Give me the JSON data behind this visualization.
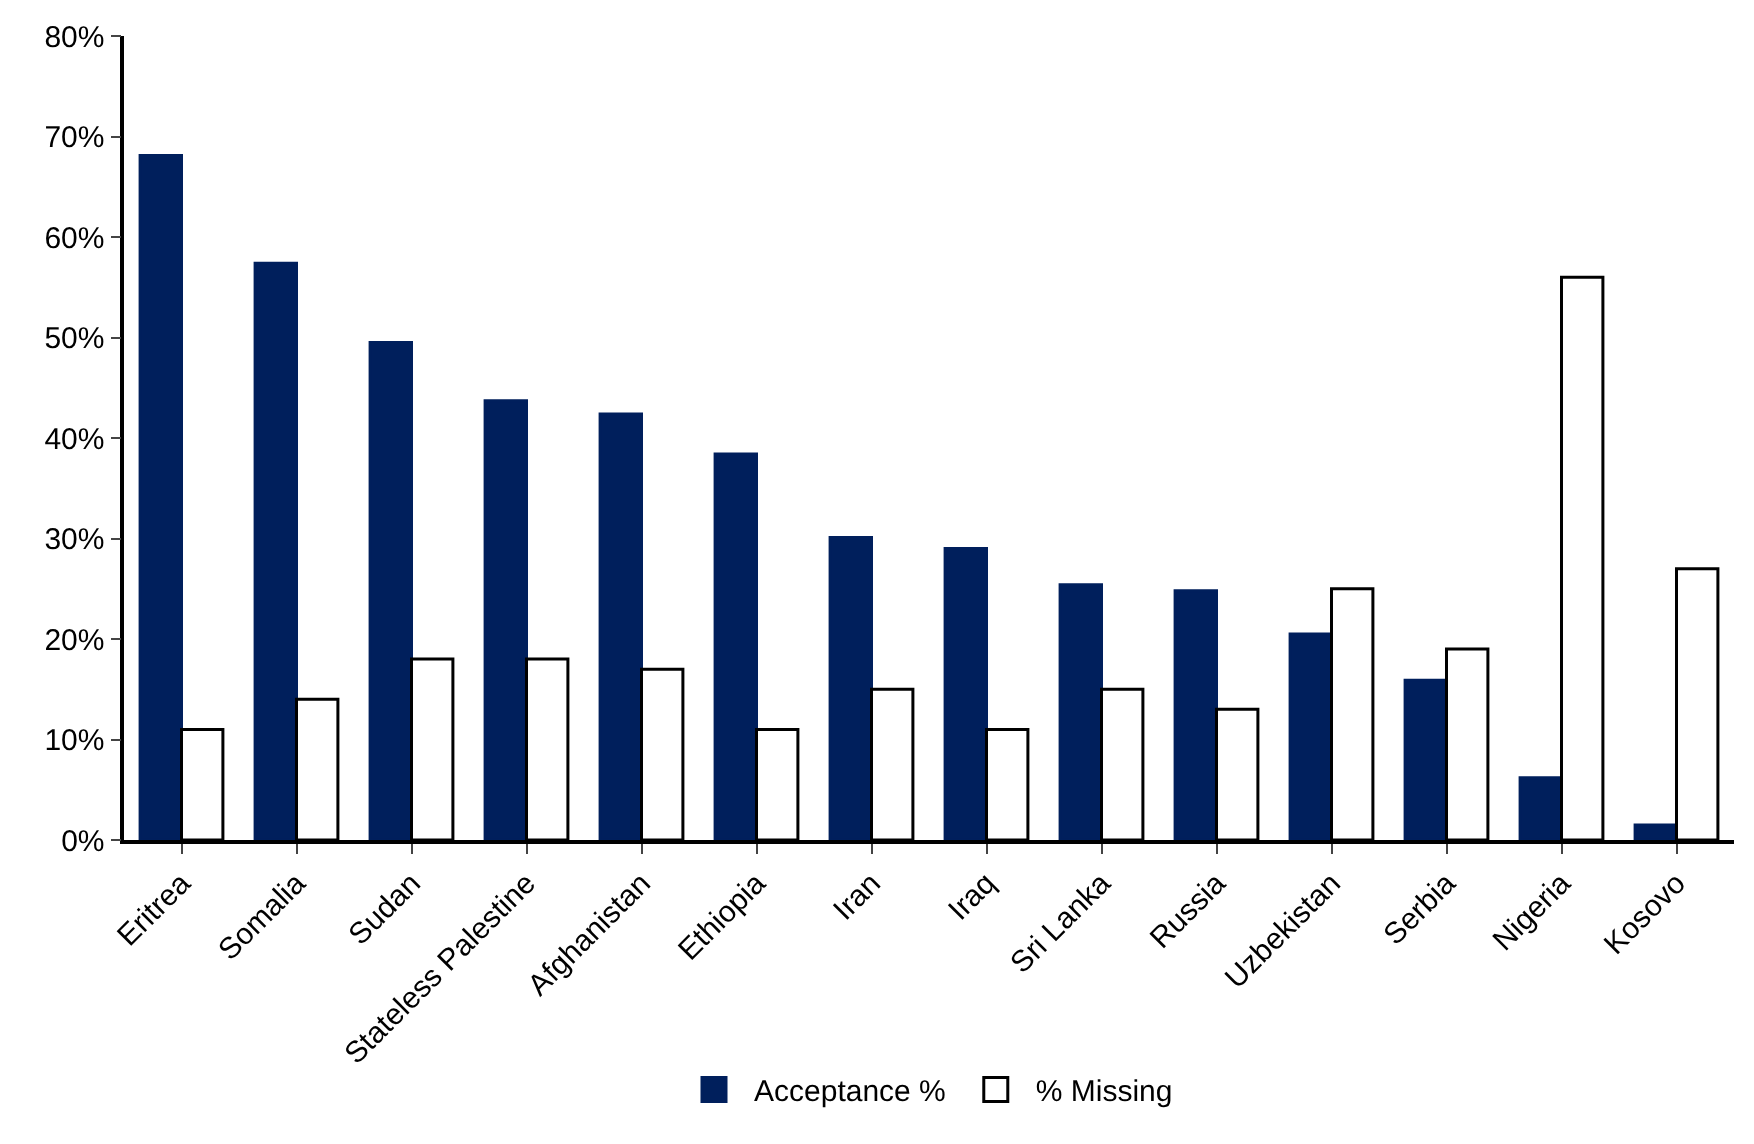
{
  "chart_data": {
    "type": "bar",
    "categories": [
      "Eritrea",
      "Somalia",
      "Sudan",
      "Stateless Palestine",
      "Afghanistan",
      "Ethiopia",
      "Iran",
      "Iraq",
      "Sri Lanka",
      "Russia",
      "Uzbekistan",
      "Serbia",
      "Nigeria",
      "Kosovo"
    ],
    "series": [
      {
        "name": "Acceptance %",
        "color": "#001f5c",
        "values": [
          68.1,
          57.4,
          49.5,
          43.7,
          42.4,
          38.4,
          30.1,
          29.0,
          25.4,
          24.8,
          20.5,
          15.9,
          6.2,
          1.5
        ]
      },
      {
        "name": "% Missing",
        "color": "#ffffff",
        "values": [
          11,
          14,
          18,
          18,
          17,
          11,
          15,
          11,
          15,
          13,
          25,
          19,
          56,
          27
        ]
      }
    ],
    "ylim": [
      0,
      80
    ],
    "yticks": [
      {
        "value": 0,
        "label": "0%"
      },
      {
        "value": 10,
        "label": "10%"
      },
      {
        "value": 20,
        "label": "20%"
      },
      {
        "value": 30,
        "label": "30%"
      },
      {
        "value": 40,
        "label": "40%"
      },
      {
        "value": 50,
        "label": "50%"
      },
      {
        "value": 60,
        "label": "60%"
      },
      {
        "value": 70,
        "label": "70%"
      },
      {
        "value": 80,
        "label": "80%"
      }
    ],
    "legend": "bottom"
  }
}
